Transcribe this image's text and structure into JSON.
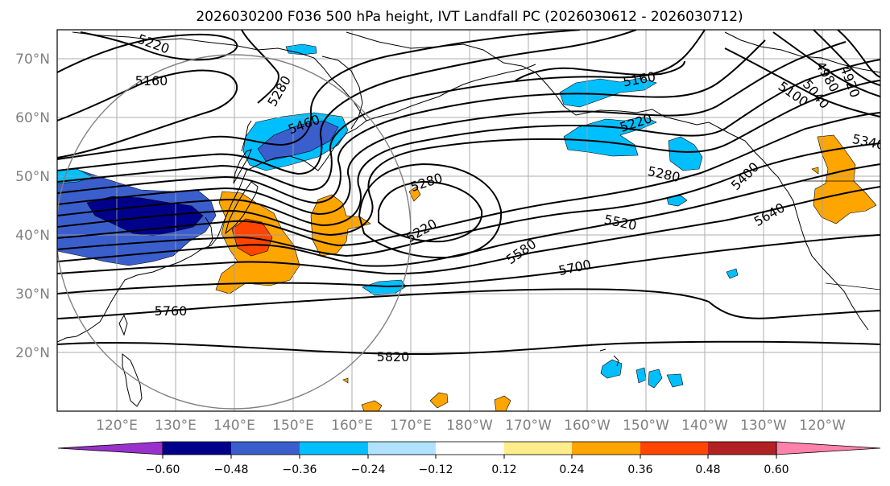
{
  "title": "2026030200 F036 500 hPa height, IVT Landfall PC (2026030612 - 2026030712)",
  "lat_labels": [
    "70°N",
    "60°N",
    "50°N",
    "40°N",
    "30°N",
    "20°N"
  ],
  "lon_labels": [
    "120°E",
    "130°E",
    "140°E",
    "150°E",
    "160°E",
    "170°E",
    "180°W",
    "170°W",
    "160°W",
    "150°W",
    "140°W",
    "130°W",
    "120°W"
  ],
  "colorbar": {
    "colors": [
      "#9932cc",
      "#00008b",
      "#3a5fcd",
      "#00bfff",
      "#b0e2ff",
      "#ffffff",
      "#ffec8b",
      "#ffa500",
      "#ff4500",
      "#b22222",
      "#ff82ab"
    ],
    "tick_labels": [
      "−0.60",
      "−0.48",
      "−0.36",
      "−0.24",
      "−0.12",
      "0.12",
      "0.24",
      "0.36",
      "0.48",
      "0.60"
    ]
  },
  "contour_labels": [
    "5160",
    "5220",
    "5280",
    "5460",
    "5280",
    "5220",
    "5160",
    "5220",
    "5280",
    "5400",
    "5340",
    "5100",
    "5040",
    "4980",
    "4920",
    "5520",
    "5580",
    "5640",
    "5700",
    "5760",
    "5820"
  ],
  "icons": {
    "range_ring": "circle-outline"
  }
}
